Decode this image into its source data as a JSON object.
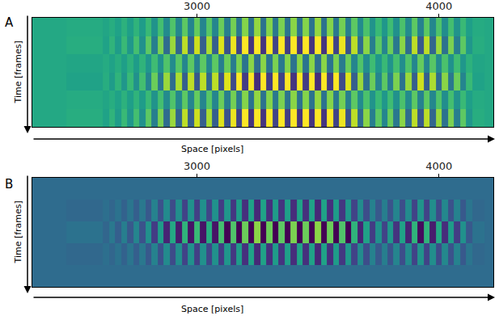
{
  "chart_data": [
    {
      "type": "heatmap",
      "title": "A",
      "x_label": "Space [pixels]",
      "y_label": "Time [frames]",
      "x": [
        2320,
        2600,
        2625,
        2650,
        2675,
        2700,
        2725,
        2750,
        2775,
        2800,
        2825,
        2850,
        2875,
        2900,
        2925,
        2950,
        2975,
        3000,
        3025,
        3050,
        3075,
        3100,
        3125,
        3150,
        3175,
        3200,
        3225,
        3250,
        3275,
        3300,
        3325,
        3350,
        3375,
        3400,
        3425,
        3450,
        3475,
        3500,
        3525,
        3550,
        3575,
        3600,
        3625,
        3650,
        3675,
        3700,
        3725,
        3750,
        3775,
        3800,
        3825,
        3850,
        3875,
        3900,
        3925,
        3950,
        3975,
        4000,
        4025,
        4050,
        4075,
        4100,
        4125,
        4150,
        4225
      ],
      "y": [
        0,
        1,
        2,
        3,
        4,
        5
      ],
      "z": [
        [
          0,
          0.05,
          -0.05,
          0.1,
          -0.1,
          0.15,
          -0.15,
          0.2,
          -0.2,
          0.3,
          -0.35,
          0.4,
          -0.5,
          0.5,
          -0.55,
          0.6,
          -0.6,
          0.65,
          -0.6,
          0.55,
          -0.6,
          0.7,
          -0.7,
          0.75,
          -0.8,
          0.85,
          -0.9,
          0.95,
          -0.9,
          0.85,
          -0.8,
          0.8,
          -0.85,
          0.9,
          -0.9,
          0.85,
          -0.9,
          0.95,
          -0.9,
          0.85,
          -0.8,
          0.75,
          -0.7,
          0.6,
          -0.5,
          0.45,
          -0.35,
          0.3,
          -0.3,
          0.35,
          -0.4,
          0.45,
          -0.5,
          0.6,
          -0.65,
          0.6,
          -0.55,
          0.5,
          -0.45,
          0.4,
          -0.35,
          0.3,
          -0.15,
          0.05,
          0
        ],
        [
          0,
          0.03,
          -0.03,
          0.05,
          -0.05,
          0.08,
          -0.08,
          0.1,
          -0.1,
          0.15,
          -0.18,
          0.2,
          -0.25,
          0.25,
          -0.28,
          0.3,
          -0.3,
          0.33,
          -0.3,
          0.28,
          -0.3,
          0.35,
          -0.35,
          0.38,
          -0.4,
          0.43,
          -0.45,
          0.48,
          -0.45,
          0.43,
          -0.4,
          0.4,
          -0.43,
          0.45,
          -0.45,
          0.43,
          -0.45,
          0.48,
          -0.45,
          0.43,
          -0.4,
          0.38,
          -0.35,
          0.3,
          -0.25,
          0.23,
          -0.18,
          0.15,
          -0.15,
          0.18,
          -0.2,
          0.23,
          -0.25,
          0.3,
          -0.33,
          0.3,
          -0.28,
          0.25,
          -0.23,
          0.2,
          -0.18,
          0.15,
          -0.08,
          0.03,
          0
        ],
        [
          0,
          -0.05,
          0.05,
          -0.1,
          0.1,
          -0.15,
          0.15,
          -0.2,
          0.2,
          -0.3,
          0.35,
          -0.4,
          0.5,
          -0.5,
          0.55,
          -0.6,
          0.6,
          -0.65,
          0.6,
          -0.55,
          0.6,
          -0.7,
          0.7,
          -0.75,
          0.8,
          -0.85,
          0.9,
          -0.95,
          0.9,
          -0.85,
          0.8,
          -0.8,
          0.85,
          -0.9,
          0.9,
          -0.85,
          0.9,
          -0.95,
          0.9,
          -0.85,
          0.8,
          -0.75,
          0.7,
          -0.6,
          0.5,
          -0.45,
          0.35,
          -0.3,
          0.3,
          -0.35,
          0.4,
          -0.45,
          0.5,
          -0.6,
          0.65,
          -0.6,
          0.55,
          -0.5,
          0.45,
          -0.4,
          0.35,
          -0.3,
          0.15,
          -0.05,
          0
        ],
        [
          0,
          -0.03,
          0.03,
          -0.05,
          0.05,
          -0.08,
          0.08,
          -0.1,
          0.1,
          -0.15,
          0.18,
          -0.2,
          0.25,
          -0.25,
          0.28,
          -0.3,
          0.3,
          -0.33,
          0.3,
          -0.28,
          0.3,
          -0.35,
          0.35,
          -0.38,
          0.4,
          -0.43,
          0.45,
          -0.48,
          0.45,
          -0.43,
          0.4,
          -0.4,
          0.43,
          -0.45,
          0.45,
          -0.43,
          0.45,
          -0.48,
          0.45,
          -0.43,
          0.4,
          -0.38,
          0.35,
          -0.3,
          0.25,
          -0.23,
          0.18,
          -0.15,
          0.15,
          -0.18,
          0.2,
          -0.23,
          0.25,
          -0.3,
          0.33,
          -0.3,
          0.28,
          -0.25,
          0.23,
          -0.2,
          0.18,
          -0.15,
          0.08,
          -0.03,
          0
        ],
        [
          0,
          0.05,
          -0.05,
          0.1,
          -0.1,
          0.15,
          -0.15,
          0.2,
          -0.2,
          0.3,
          -0.35,
          0.4,
          -0.5,
          0.5,
          -0.55,
          0.6,
          -0.6,
          0.65,
          -0.6,
          0.55,
          -0.6,
          0.7,
          -0.7,
          0.75,
          -0.8,
          0.85,
          -0.9,
          0.95,
          -0.9,
          0.85,
          -0.8,
          0.8,
          -0.85,
          0.9,
          -0.9,
          0.85,
          -0.9,
          0.95,
          -0.9,
          0.85,
          -0.8,
          0.75,
          -0.7,
          0.6,
          -0.5,
          0.45,
          -0.35,
          0.3,
          -0.3,
          0.35,
          -0.4,
          0.45,
          -0.5,
          0.6,
          -0.65,
          0.6,
          -0.55,
          0.5,
          -0.45,
          0.4,
          -0.35,
          0.3,
          -0.15,
          0.05,
          0
        ],
        [
          0,
          0.03,
          -0.03,
          0.05,
          -0.05,
          0.08,
          -0.08,
          0.1,
          -0.1,
          0.15,
          -0.18,
          0.2,
          -0.25,
          0.25,
          -0.28,
          0.3,
          -0.3,
          0.33,
          -0.3,
          0.28,
          -0.3,
          0.35,
          -0.35,
          0.38,
          -0.4,
          0.43,
          -0.45,
          0.48,
          -0.45,
          0.43,
          -0.4,
          0.4,
          -0.43,
          0.45,
          -0.45,
          0.43,
          -0.45,
          0.48,
          -0.45,
          0.43,
          -0.4,
          0.38,
          -0.35,
          0.3,
          -0.25,
          0.23,
          -0.18,
          0.15,
          -0.15,
          0.18,
          -0.2,
          0.23,
          -0.25,
          0.3,
          -0.33,
          0.3,
          -0.28,
          0.25,
          -0.23,
          0.2,
          -0.18,
          0.15,
          -0.08,
          0.03,
          0
        ]
      ],
      "zlim": [
        -1.2,
        0.8
      ],
      "xlim": [
        2320,
        4225
      ],
      "xticks": [
        3000,
        4000
      ],
      "ylim": [
        -0.5,
        5.5
      ],
      "tick_labels": "x"
    },
    {
      "type": "heatmap",
      "title": "B",
      "x_label": "Space [pixels]",
      "y_label": "Time [frames]",
      "x": [
        2320,
        2600,
        2625,
        2650,
        2675,
        2700,
        2725,
        2750,
        2775,
        2800,
        2825,
        2850,
        2875,
        2900,
        2925,
        2950,
        2975,
        3000,
        3025,
        3050,
        3075,
        3100,
        3125,
        3150,
        3175,
        3200,
        3225,
        3250,
        3275,
        3300,
        3325,
        3350,
        3375,
        3400,
        3425,
        3450,
        3475,
        3500,
        3525,
        3550,
        3575,
        3600,
        3625,
        3650,
        3675,
        3700,
        3725,
        3750,
        3775,
        3800,
        3825,
        3850,
        3875,
        3900,
        3925,
        3950,
        3975,
        4000,
        4025,
        4050,
        4075,
        4100,
        4125,
        4150,
        4225
      ],
      "y": [
        0,
        1,
        2,
        3,
        4
      ],
      "z": [
        [
          0,
          0,
          0,
          0,
          0,
          0,
          0,
          0,
          0,
          0,
          0,
          0,
          0,
          0,
          0,
          0,
          0,
          0,
          0,
          0,
          0,
          0,
          0,
          0,
          0,
          0,
          0,
          0,
          0,
          0,
          0,
          0,
          0,
          0,
          0,
          0,
          0,
          0,
          0,
          0,
          0,
          0,
          0,
          0,
          0,
          0,
          0,
          0,
          0,
          0,
          0,
          0,
          0,
          0,
          0,
          0,
          0,
          0,
          0,
          0,
          0,
          0,
          0,
          0,
          0
        ],
        [
          0,
          -0.03,
          0.03,
          -0.05,
          0.05,
          -0.08,
          0.08,
          -0.1,
          0.1,
          -0.15,
          0.18,
          -0.2,
          0.25,
          -0.25,
          0.28,
          -0.3,
          0.3,
          -0.33,
          0.3,
          -0.28,
          0.3,
          -0.35,
          0.35,
          -0.38,
          0.4,
          -0.43,
          0.45,
          -0.48,
          0.45,
          -0.43,
          0.4,
          -0.4,
          0.43,
          -0.45,
          0.45,
          -0.43,
          0.45,
          -0.48,
          0.45,
          -0.43,
          0.4,
          -0.38,
          0.35,
          -0.3,
          0.25,
          -0.23,
          0.18,
          -0.15,
          0.15,
          -0.18,
          0.2,
          -0.23,
          0.25,
          -0.3,
          0.33,
          -0.3,
          0.28,
          -0.25,
          0.23,
          -0.2,
          0.18,
          -0.15,
          0.08,
          -0.03,
          0
        ],
        [
          0,
          0.05,
          -0.05,
          0.1,
          -0.1,
          0.15,
          -0.15,
          0.2,
          -0.2,
          0.3,
          -0.35,
          0.4,
          -0.5,
          0.5,
          -0.55,
          0.6,
          -0.6,
          0.65,
          -0.6,
          0.55,
          -0.6,
          0.7,
          -0.7,
          0.75,
          -0.8,
          0.85,
          -0.9,
          0.95,
          -0.9,
          0.85,
          -0.8,
          0.8,
          -0.85,
          0.9,
          -0.9,
          0.85,
          -0.9,
          0.95,
          -0.9,
          0.85,
          -0.8,
          0.75,
          -0.7,
          0.6,
          -0.5,
          0.45,
          -0.35,
          0.3,
          -0.3,
          0.35,
          -0.4,
          0.45,
          -0.5,
          0.6,
          -0.65,
          0.6,
          -0.55,
          0.5,
          -0.45,
          0.4,
          -0.35,
          0.3,
          -0.15,
          0.05,
          0
        ],
        [
          0,
          -0.03,
          0.03,
          -0.05,
          0.05,
          -0.08,
          0.08,
          -0.1,
          0.1,
          -0.15,
          0.18,
          -0.2,
          0.25,
          -0.25,
          0.28,
          -0.3,
          0.3,
          -0.33,
          0.3,
          -0.28,
          0.3,
          -0.35,
          0.35,
          -0.38,
          0.4,
          -0.43,
          0.45,
          -0.48,
          0.45,
          -0.43,
          0.4,
          -0.4,
          0.43,
          -0.45,
          0.45,
          -0.43,
          0.45,
          -0.48,
          0.45,
          -0.43,
          0.4,
          -0.38,
          0.35,
          -0.3,
          0.25,
          -0.23,
          0.18,
          -0.15,
          0.15,
          -0.18,
          0.2,
          -0.23,
          0.25,
          -0.3,
          0.33,
          -0.3,
          0.28,
          -0.25,
          0.23,
          -0.2,
          0.18,
          -0.15,
          0.08,
          -0.03,
          0
        ],
        [
          0,
          0,
          0,
          0,
          0,
          0,
          0,
          0,
          0,
          0,
          0,
          0,
          0,
          0,
          0,
          0,
          0,
          0,
          0,
          0,
          0,
          0,
          0,
          0,
          0,
          0,
          0,
          0,
          0,
          0,
          0,
          0,
          0,
          0,
          0,
          0,
          0,
          0,
          0,
          0,
          0,
          0,
          0,
          0,
          0,
          0,
          0,
          0,
          0,
          0,
          0,
          0,
          0,
          0,
          0,
          0,
          0,
          0,
          0,
          0,
          0,
          0,
          0,
          0,
          0
        ]
      ],
      "zlim": [
        -0.7,
        1.3
      ],
      "xlim": [
        2320,
        4225
      ],
      "xticks": [
        3000,
        4000
      ],
      "ylim": [
        -0.5,
        4.5
      ],
      "tick_labels": "x"
    }
  ]
}
